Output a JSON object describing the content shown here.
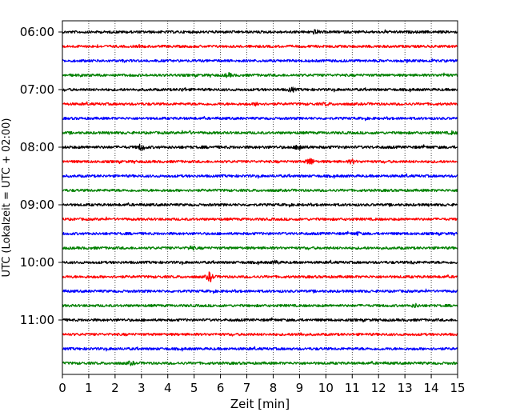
{
  "chart_data": {
    "type": "line",
    "title": "",
    "xlabel": "Zeit  [min]",
    "ylabel": "UTC (Lokalzeit = UTC + 02:00)",
    "xlim": [
      0,
      15
    ],
    "x_ticks": [
      0,
      1,
      2,
      3,
      4,
      5,
      6,
      7,
      8,
      9,
      10,
      11,
      12,
      13,
      14,
      15
    ],
    "x_tick_labels": [
      "0",
      "1",
      "2",
      "3",
      "4",
      "5",
      "6",
      "7",
      "8",
      "9",
      "10",
      "11",
      "12",
      "13",
      "14",
      "15"
    ],
    "y_tick_labels": [
      "06:00",
      "07:00",
      "08:00",
      "09:00",
      "10:00",
      "11:00"
    ],
    "y_tick_rows": [
      0,
      4,
      8,
      12,
      16,
      20
    ],
    "grid": "vertical dotted at each minute",
    "color_cycle": [
      "#000000",
      "#ff0000",
      "#0000ff",
      "#008000"
    ],
    "series": [
      {
        "start": "06:00",
        "amplitude": 1.0,
        "events": [
          {
            "t": 9.6,
            "amp": 1.6
          }
        ]
      },
      {
        "start": "06:15",
        "amplitude": 1.0,
        "events": []
      },
      {
        "start": "06:30",
        "amplitude": 1.0,
        "events": []
      },
      {
        "start": "06:45",
        "amplitude": 1.0,
        "events": [
          {
            "t": 6.3,
            "amp": 1.6
          },
          {
            "t": 14.5,
            "amp": 1.4
          }
        ]
      },
      {
        "start": "07:00",
        "amplitude": 1.0,
        "events": [
          {
            "t": 8.7,
            "amp": 1.7
          },
          {
            "t": 4.6,
            "amp": 1.4
          }
        ]
      },
      {
        "start": "07:15",
        "amplitude": 1.0,
        "events": [
          {
            "t": 7.4,
            "amp": 1.5
          },
          {
            "t": 10.0,
            "amp": 1.4
          }
        ]
      },
      {
        "start": "07:30",
        "amplitude": 1.0,
        "events": []
      },
      {
        "start": "07:45",
        "amplitude": 1.0,
        "events": [
          {
            "t": 4.8,
            "amp": 1.4
          },
          {
            "t": 14.8,
            "amp": 1.4
          }
        ]
      },
      {
        "start": "08:00",
        "amplitude": 1.1,
        "events": [
          {
            "t": 3.0,
            "amp": 2.0
          },
          {
            "t": 9.0,
            "amp": 2.2
          }
        ]
      },
      {
        "start": "08:15",
        "amplitude": 1.0,
        "events": [
          {
            "t": 9.4,
            "amp": 2.3
          },
          {
            "t": 11.0,
            "amp": 1.6
          }
        ]
      },
      {
        "start": "08:30",
        "amplitude": 1.0,
        "events": []
      },
      {
        "start": "08:45",
        "amplitude": 1.0,
        "events": []
      },
      {
        "start": "09:00",
        "amplitude": 1.0,
        "events": []
      },
      {
        "start": "09:15",
        "amplitude": 1.0,
        "events": []
      },
      {
        "start": "09:30",
        "amplitude": 1.0,
        "events": [
          {
            "t": 11.2,
            "amp": 1.4
          }
        ]
      },
      {
        "start": "09:45",
        "amplitude": 1.0,
        "events": [
          {
            "t": 4.9,
            "amp": 1.6
          }
        ]
      },
      {
        "start": "10:00",
        "amplitude": 1.0,
        "events": [
          {
            "t": 8.1,
            "amp": 1.5
          },
          {
            "t": 13.3,
            "amp": 1.3
          }
        ]
      },
      {
        "start": "10:15",
        "amplitude": 1.0,
        "events": [
          {
            "t": 5.6,
            "amp": 2.6
          }
        ]
      },
      {
        "start": "10:30",
        "amplitude": 1.0,
        "events": []
      },
      {
        "start": "10:45",
        "amplitude": 1.0,
        "events": [
          {
            "t": 13.4,
            "amp": 1.5
          }
        ]
      },
      {
        "start": "11:00",
        "amplitude": 1.0,
        "events": []
      },
      {
        "start": "11:15",
        "amplitude": 1.0,
        "events": [
          {
            "t": 9.0,
            "amp": 1.4
          }
        ]
      },
      {
        "start": "11:30",
        "amplitude": 1.0,
        "events": []
      },
      {
        "start": "11:45",
        "amplitude": 1.0,
        "events": [
          {
            "t": 2.6,
            "amp": 1.5
          }
        ]
      }
    ]
  }
}
